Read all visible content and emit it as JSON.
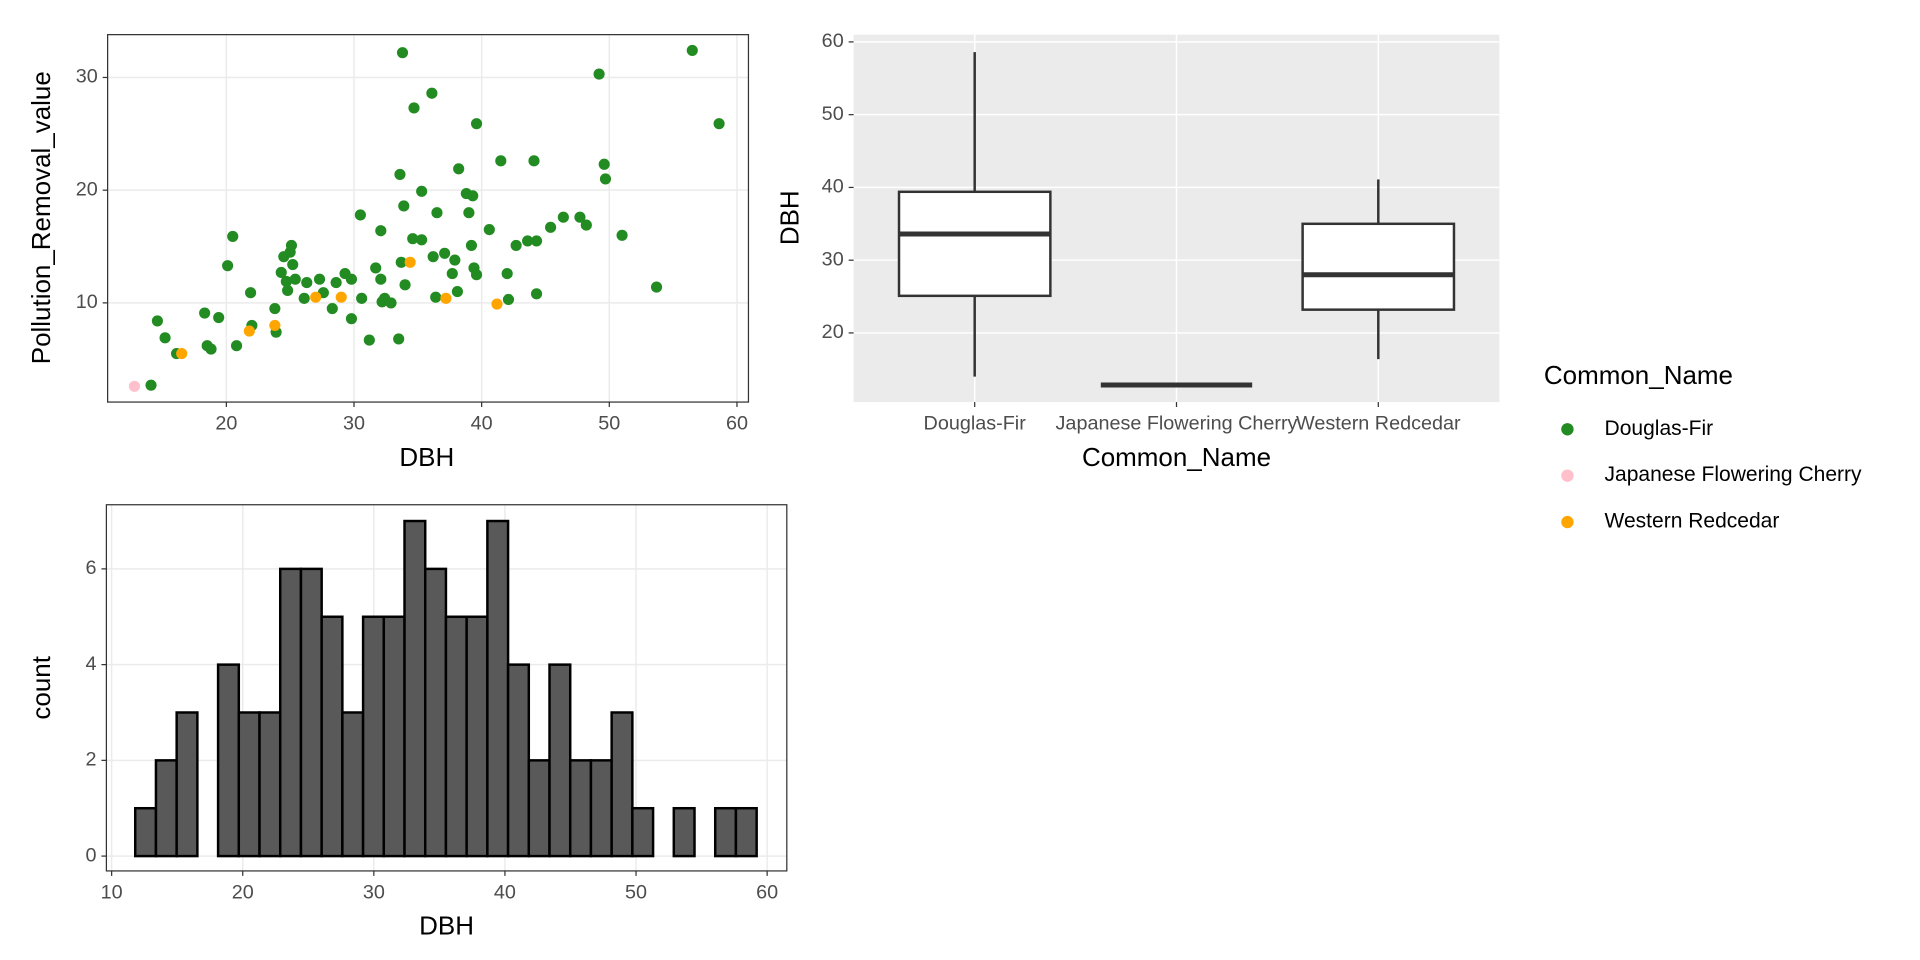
{
  "chart_data": [
    {
      "type": "scatter",
      "xlabel": "DBH",
      "ylabel": "Pollution_Removal_value",
      "legend_title": "Common_Name",
      "xlim": [
        10.7,
        60.9
      ],
      "ylim": [
        1.2,
        33.8
      ],
      "xticks": [
        20,
        30,
        40,
        50,
        60
      ],
      "yticks": [
        10,
        20,
        30
      ],
      "grid": true,
      "series": [
        {
          "name": "Douglas-Fir",
          "color": "#228b22",
          "x": [
            14.1,
            14.6,
            15.2,
            16.1,
            18.3,
            18.5,
            18.8,
            19.4,
            20.1,
            20.5,
            20.8,
            21.9,
            22.0,
            23.8,
            23.9,
            24.3,
            24.5,
            24.7,
            25.0,
            25.1,
            25.2,
            25.4,
            24.8,
            26.1,
            26.3,
            27.3,
            27.6,
            28.3,
            28.6,
            29.3,
            29.8,
            29.8,
            30.5,
            30.6,
            31.2,
            31.7,
            32.1,
            32.1,
            32.2,
            32.4,
            32.9,
            33.5,
            33.6,
            33.7,
            33.8,
            33.9,
            34.0,
            34.6,
            34.7,
            35.3,
            35.3,
            36.1,
            36.2,
            36.4,
            36.5,
            37.1,
            37.7,
            37.9,
            38.1,
            38.2,
            38.8,
            39.0,
            39.2,
            39.3,
            39.4,
            39.6,
            39.6,
            40.6,
            41.5,
            42.0,
            42.1,
            42.7,
            43.6,
            44.1,
            44.3,
            44.3,
            45.4,
            46.4,
            47.7,
            48.2,
            49.2,
            49.6,
            49.7,
            51.0,
            53.7,
            56.5,
            58.6
          ],
          "values": [
            2.7,
            8.4,
            6.9,
            5.5,
            9.1,
            6.2,
            5.9,
            8.7,
            13.3,
            15.9,
            6.2,
            10.9,
            8.0,
            9.5,
            7.4,
            12.7,
            14.1,
            11.9,
            14.5,
            15.1,
            13.4,
            12.1,
            11.1,
            10.4,
            11.8,
            12.1,
            10.9,
            9.5,
            11.8,
            12.6,
            12.1,
            8.6,
            17.8,
            10.4,
            6.7,
            13.1,
            16.4,
            12.1,
            10.1,
            10.4,
            10.0,
            6.8,
            21.4,
            13.6,
            32.2,
            18.6,
            11.6,
            15.7,
            27.3,
            19.9,
            15.6,
            28.6,
            14.1,
            10.5,
            18.0,
            14.4,
            12.6,
            13.8,
            11.0,
            21.9,
            19.7,
            18.0,
            15.1,
            19.5,
            13.1,
            25.9,
            12.5,
            16.5,
            22.6,
            12.6,
            10.3,
            15.1,
            15.5,
            22.6,
            15.5,
            10.8,
            16.7,
            17.6,
            17.6,
            16.9,
            30.3,
            22.3,
            21.0,
            16.0,
            11.4,
            32.4,
            25.9
          ]
        },
        {
          "name": "Japanese Flowering Cherry",
          "color": "#ffc0cb",
          "x": [
            12.8
          ],
          "values": [
            2.6
          ]
        },
        {
          "name": "Western Redcedar",
          "color": "#ffa500",
          "x": [
            16.5,
            21.8,
            23.8,
            27.0,
            29.0,
            34.4,
            37.2,
            41.2
          ],
          "values": [
            5.5,
            7.5,
            8.0,
            10.5,
            10.5,
            13.6,
            10.4,
            9.9
          ]
        }
      ]
    },
    {
      "type": "box",
      "xlabel": "Common_Name",
      "ylabel": "DBH",
      "categories": [
        "Douglas-Fir",
        "Japanese Flowering Cherry",
        "Western Redcedar"
      ],
      "ylim": [
        10.5,
        61.0
      ],
      "yticks": [
        20,
        30,
        40,
        50,
        60
      ],
      "grid": true,
      "color": "#333333",
      "boxes": [
        {
          "min": 14.0,
          "q1": 25.1,
          "median": 33.6,
          "q3": 39.4,
          "max": 58.6
        },
        {
          "min": 12.85,
          "q1": 12.85,
          "median": 12.85,
          "q3": 12.85,
          "max": 12.85
        },
        {
          "min": 16.4,
          "q1": 23.2,
          "median": 28.0,
          "q3": 35.0,
          "max": 41.1
        }
      ]
    },
    {
      "type": "histogram",
      "xlabel": "DBH",
      "ylabel": "count",
      "xlim": [
        9.6,
        61.5
      ],
      "ylim": [
        -0.31,
        7.34
      ],
      "xticks": [
        10,
        20,
        30,
        40,
        50,
        60
      ],
      "yticks": [
        0,
        2,
        4,
        6
      ],
      "grid": true,
      "color": "#595959",
      "bins": [
        11.8,
        13.38,
        14.96,
        16.54,
        18.12,
        19.7,
        21.28,
        22.86,
        24.44,
        26.02,
        27.6,
        29.18,
        30.76,
        32.34,
        33.92,
        35.5,
        37.08,
        38.66,
        40.24,
        41.82,
        43.4,
        44.98,
        46.56,
        48.14,
        49.72,
        51.3,
        52.88,
        54.46,
        56.04,
        57.62,
        59.2
      ],
      "values": [
        1,
        2,
        3,
        0,
        4,
        3,
        3,
        6,
        6,
        5,
        3,
        5,
        5,
        7,
        6,
        5,
        5,
        7,
        4,
        2,
        4,
        2,
        2,
        3,
        1,
        0,
        1,
        0,
        1,
        1
      ]
    }
  ]
}
